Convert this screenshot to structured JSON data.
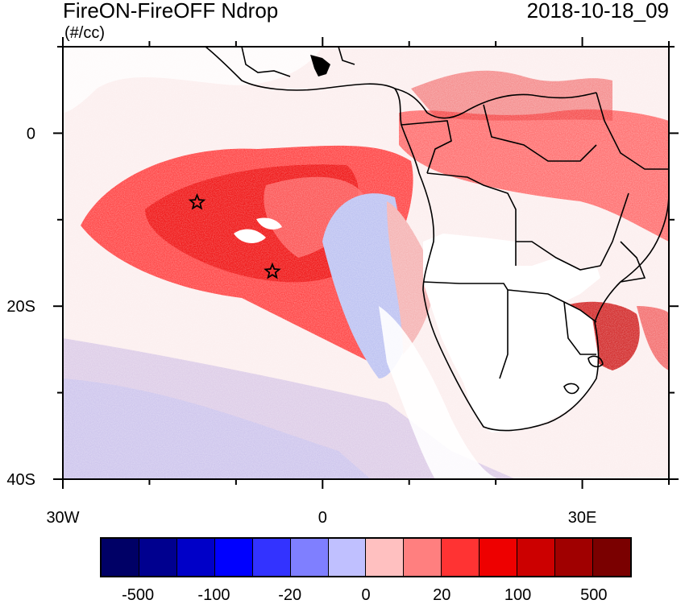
{
  "title": "FireON-FireOFF Ndrop",
  "units": "(#/cc)",
  "datetime": "2018-10-18_09",
  "map": {
    "lon_range": [
      -30,
      40
    ],
    "lat_range": [
      -40,
      10
    ],
    "lat_labels": [
      {
        "value": 0,
        "text": "0"
      },
      {
        "value": -20,
        "text": "20S"
      },
      {
        "value": -40,
        "text": "40S"
      }
    ],
    "lon_labels": [
      {
        "value": -30,
        "text": "30W"
      },
      {
        "value": 0,
        "text": "0"
      },
      {
        "value": 30,
        "text": "30E"
      }
    ],
    "markers": [
      {
        "name": "star-marker-1",
        "lon": -14.5,
        "lat": -8
      },
      {
        "name": "star-marker-2",
        "lon": -5.8,
        "lat": -16
      }
    ]
  },
  "colorbar": {
    "colors": [
      "#000066",
      "#00008f",
      "#0000c8",
      "#0000ff",
      "#3333ff",
      "#7f7fff",
      "#c0c0ff",
      "#ffc0c0",
      "#ff7f7f",
      "#ff3333",
      "#ee0000",
      "#cc0000",
      "#a00000",
      "#7a0000"
    ],
    "labels": [
      "-500",
      "-100",
      "-20",
      "0",
      "20",
      "100",
      "500"
    ]
  }
}
